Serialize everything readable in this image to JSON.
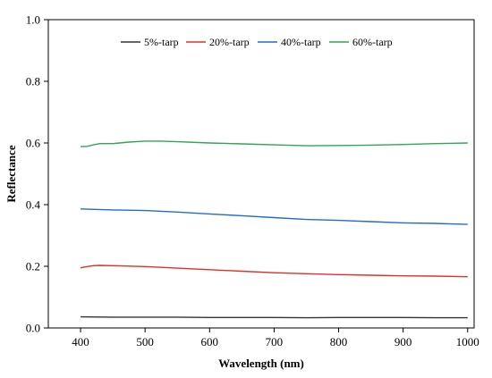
{
  "chart_data": {
    "type": "line",
    "title": "",
    "xlabel": "Wavelength (nm)",
    "ylabel": "Reflectance",
    "xlim": [
      350,
      1010
    ],
    "ylim": [
      0.0,
      1.0
    ],
    "xticks": [
      400,
      500,
      600,
      700,
      800,
      900,
      1000
    ],
    "yticks": [
      0.0,
      0.2,
      0.4,
      0.6,
      0.8,
      1.0
    ],
    "xtick_labels": [
      "400",
      "500",
      "600",
      "700",
      "800",
      "900",
      "1000"
    ],
    "ytick_labels": [
      "0.0",
      "0.2",
      "0.4",
      "0.6",
      "0.8",
      "1.0"
    ],
    "grid": false,
    "legend_position": "top-center",
    "series": [
      {
        "name": "5%-tarp",
        "color": "#333333",
        "x": [
          400,
          450,
          500,
          550,
          600,
          650,
          700,
          750,
          800,
          850,
          900,
          950,
          1000
        ],
        "y": [
          0.036,
          0.035,
          0.035,
          0.035,
          0.034,
          0.034,
          0.034,
          0.033,
          0.034,
          0.034,
          0.034,
          0.033,
          0.033
        ]
      },
      {
        "name": "20%-tarp",
        "color": "#e0302a",
        "x": [
          400,
          410,
          420,
          430,
          450,
          500,
          550,
          600,
          650,
          700,
          750,
          800,
          850,
          900,
          950,
          1000
        ],
        "y": [
          0.195,
          0.199,
          0.202,
          0.203,
          0.202,
          0.199,
          0.194,
          0.189,
          0.184,
          0.179,
          0.176,
          0.173,
          0.171,
          0.169,
          0.168,
          0.166
        ]
      },
      {
        "name": "40%-tarp",
        "color": "#1f6fc7",
        "x": [
          400,
          450,
          500,
          550,
          600,
          650,
          700,
          750,
          800,
          850,
          900,
          950,
          1000
        ],
        "y": [
          0.386,
          0.383,
          0.381,
          0.376,
          0.37,
          0.364,
          0.358,
          0.352,
          0.349,
          0.345,
          0.341,
          0.339,
          0.336
        ]
      },
      {
        "name": "60%-tarp",
        "color": "#2ea655",
        "x": [
          400,
          410,
          420,
          430,
          450,
          475,
          500,
          525,
          550,
          600,
          650,
          700,
          750,
          800,
          850,
          900,
          950,
          1000
        ],
        "y": [
          0.588,
          0.589,
          0.594,
          0.598,
          0.598,
          0.603,
          0.606,
          0.606,
          0.604,
          0.6,
          0.597,
          0.594,
          0.591,
          0.592,
          0.593,
          0.595,
          0.598,
          0.6
        ]
      }
    ]
  }
}
